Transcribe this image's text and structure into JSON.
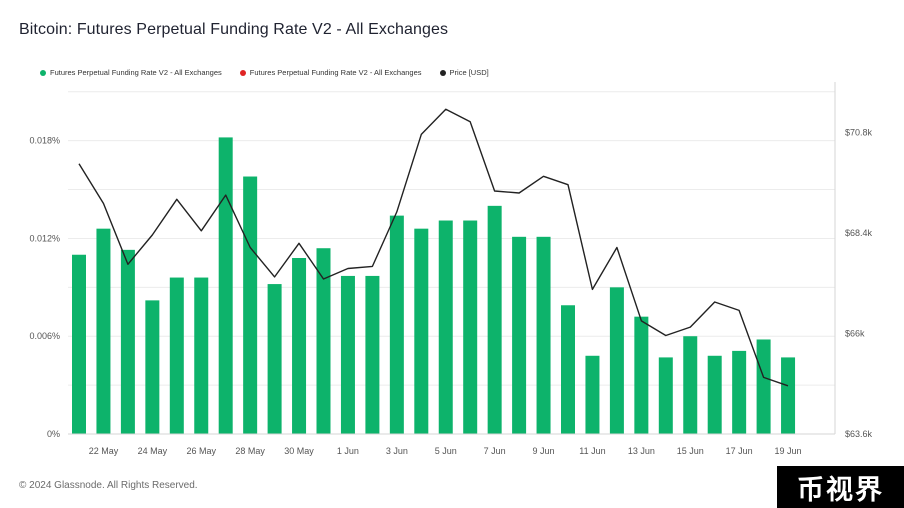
{
  "chart_data": {
    "type": "bar",
    "title": "Bitcoin: Futures Perpetual Funding Rate V2 - All Exchanges",
    "legend": [
      {
        "label": "Futures Perpetual Funding Rate V2 - All Exchanges",
        "color": "#0db36b"
      },
      {
        "label": "Futures Perpetual Funding Rate V2 - All Exchanges",
        "color": "#e02424"
      },
      {
        "label": "Price [USD]",
        "color": "#222222"
      }
    ],
    "x_tick_labels": [
      "22 May",
      "24 May",
      "26 May",
      "28 May",
      "30 May",
      "1 Jun",
      "3 Jun",
      "5 Jun",
      "7 Jun",
      "9 Jun",
      "11 Jun",
      "13 Jun",
      "15 Jun",
      "17 Jun",
      "19 Jun"
    ],
    "y_left": {
      "ticks": [
        "0%",
        "0.006%",
        "0.012%",
        "0.018%"
      ],
      "values": [
        0,
        0.006,
        0.012,
        0.018
      ],
      "ylim": [
        0,
        0.0216
      ]
    },
    "y_right": {
      "ticks": [
        "$63.6k",
        "$66k",
        "$68.4k",
        "$70.8k"
      ],
      "values": [
        63600,
        66000,
        68400,
        70800
      ],
      "ylim": [
        63600,
        72000
      ]
    },
    "series": [
      {
        "name": "Futures Perpetual Funding Rate V2 - All Exchanges",
        "type": "bar",
        "axis": "left",
        "color": "#0db36b",
        "values": [
          0.011,
          0.0126,
          0.0113,
          0.0082,
          0.0096,
          0.0096,
          0.0182,
          0.0158,
          0.0092,
          0.0108,
          0.0114,
          0.0097,
          0.0097,
          0.0134,
          0.0126,
          0.0131,
          0.0131,
          0.014,
          0.0121,
          0.0121,
          0.0079,
          0.0048,
          0.009,
          0.0072,
          0.0047,
          0.006,
          0.0048,
          0.0051,
          0.0058,
          0.0047
        ]
      },
      {
        "name": "Price [USD]",
        "type": "line",
        "axis": "right",
        "color": "#222222",
        "values": [
          70050,
          69100,
          67650,
          68350,
          69200,
          68450,
          69300,
          68050,
          67350,
          68150,
          67300,
          67550,
          67600,
          68900,
          70750,
          71350,
          71050,
          69400,
          69350,
          69750,
          69550,
          67050,
          68050,
          66300,
          65950,
          66150,
          66750,
          66550,
          64950,
          64750
        ]
      }
    ]
  },
  "footer": {
    "copyright": "© 2024 Glassnode. All Rights Reserved."
  },
  "watermark": {
    "text": "币视界"
  }
}
